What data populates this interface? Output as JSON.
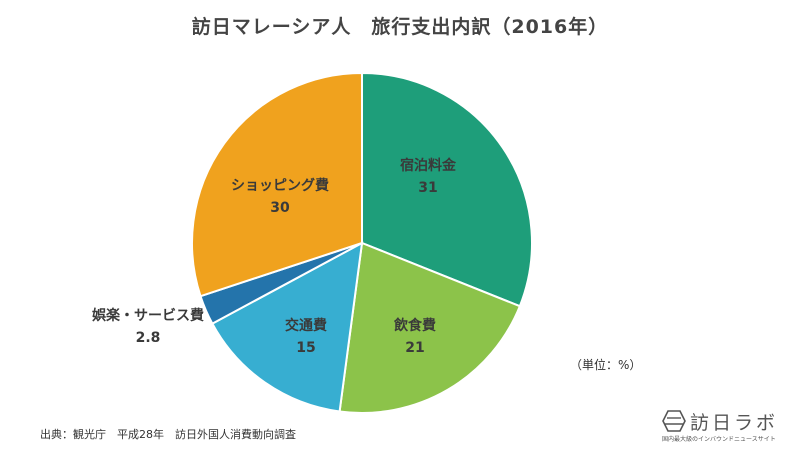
{
  "chart_data": {
    "type": "pie",
    "title": "訪日マレーシア人　旅行支出内訳（2016年）",
    "slices": [
      {
        "label": "宿泊料金",
        "value": 31,
        "value_label": "31",
        "color": "#1e9e7a"
      },
      {
        "label": "飲食費",
        "value": 21,
        "value_label": "21",
        "color": "#8cc34a"
      },
      {
        "label": "交通費",
        "value": 15,
        "value_label": "15",
        "color": "#37aed1"
      },
      {
        "label": "娯楽・サービス費",
        "value": 2.8,
        "value_label": "2.8",
        "color": "#2474ab"
      },
      {
        "label": "ショッピング費",
        "value": 30,
        "value_label": "30",
        "color": "#f0a21e"
      }
    ],
    "start_angle_deg": 0,
    "direction": "clockwise",
    "unit_note": "（単位：%）"
  },
  "source": "出典：観光庁　平成28年　訪日外国人消費動向調査",
  "logo": {
    "name": "訪日ラボ",
    "tagline": "国内最大級のインバウンドニュースサイト"
  }
}
